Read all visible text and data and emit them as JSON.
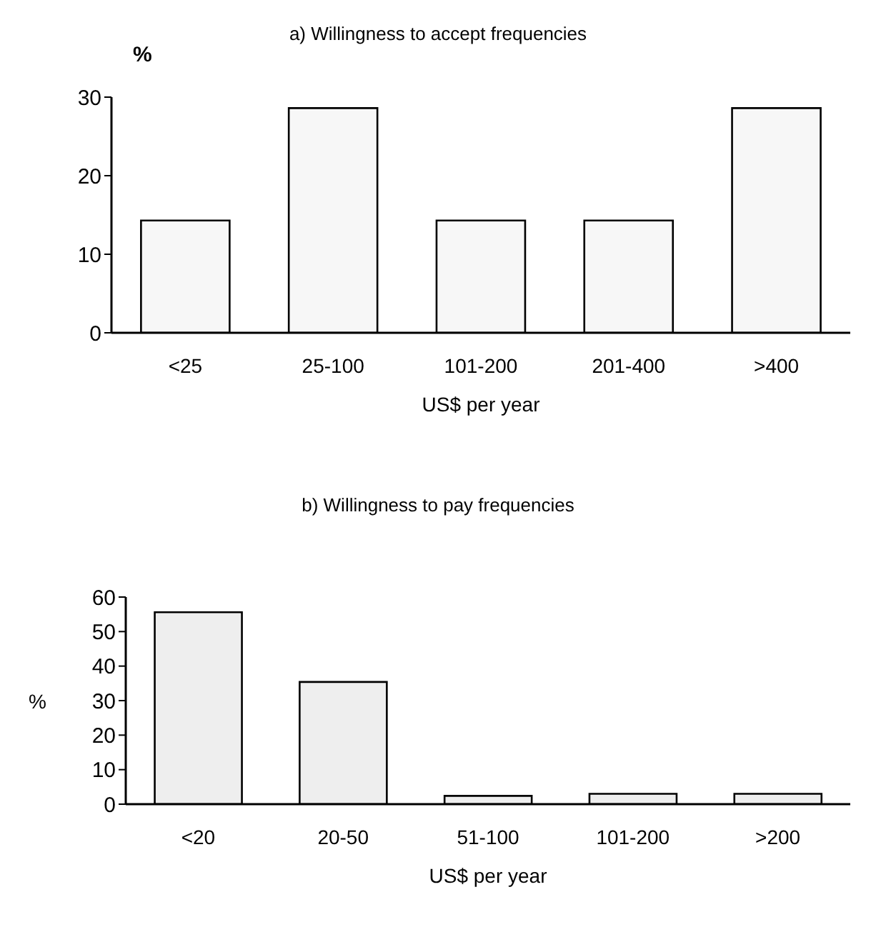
{
  "chart_data": [
    {
      "type": "bar",
      "title": "a) Willingness to accept frequencies",
      "xlabel": "US$ per year",
      "ylabel": "%",
      "categories": [
        "<25",
        "25-100",
        "101-200",
        "201-400",
        ">400"
      ],
      "values": [
        14.3,
        28.6,
        14.3,
        14.3,
        28.6
      ],
      "color": "#f7f7f7",
      "ylim": [
        0,
        30
      ],
      "yticks": [
        0,
        10,
        20,
        30
      ],
      "grid": false,
      "legend": false
    },
    {
      "type": "bar",
      "title": "b) Willingness to pay frequencies",
      "xlabel": "US$ per year",
      "ylabel": "%",
      "categories": [
        "<20",
        "20-50",
        "51-100",
        "101-200",
        ">200"
      ],
      "values": [
        55.6,
        35.4,
        2.4,
        3,
        3
      ],
      "color": "#eeeeee",
      "ylim": [
        0,
        60
      ],
      "yticks": [
        0,
        10,
        20,
        30,
        40,
        50,
        60
      ],
      "grid": false,
      "legend": false
    }
  ]
}
